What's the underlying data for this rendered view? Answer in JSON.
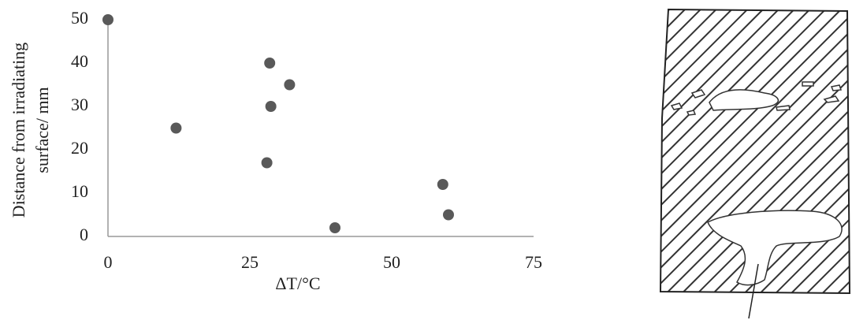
{
  "chart_data": {
    "type": "scatter",
    "xlabel": "ΔT/°C",
    "ylabel": [
      "Distance from irradiating",
      "surface/ mm"
    ],
    "x": [
      0,
      12,
      28.5,
      32,
      28.7,
      28,
      40,
      59,
      60
    ],
    "y": [
      50,
      25,
      40,
      35,
      30,
      17,
      2,
      12,
      5
    ],
    "color": "#595959",
    "xlim": [
      0,
      75
    ],
    "xticks": [
      0,
      25,
      50,
      75
    ],
    "ylim": [
      0,
      50
    ],
    "yticks": [
      0,
      10,
      20,
      30,
      40,
      50
    ],
    "grid": false
  }
}
